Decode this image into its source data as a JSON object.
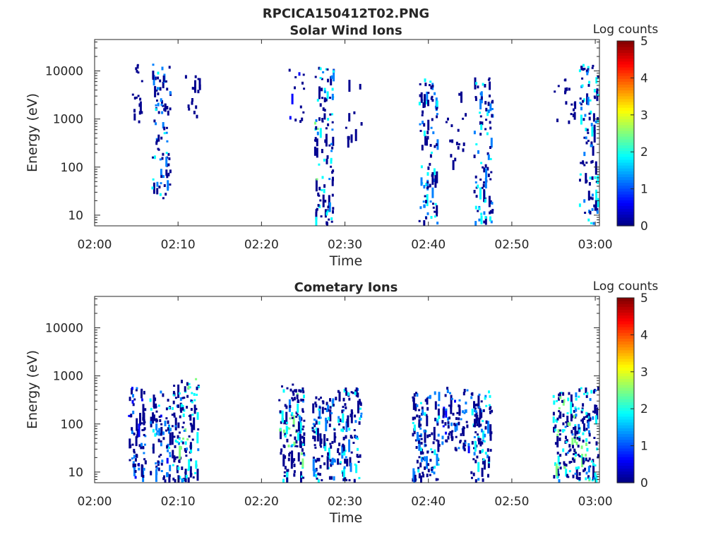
{
  "figure": {
    "filename": "RPCICA150412T02.PNG"
  },
  "colormap": [
    "#00008f",
    "#0000ff",
    "#0080ff",
    "#00ffff",
    "#80ff80",
    "#ffff00",
    "#ff8000",
    "#ff0000",
    "#800000"
  ],
  "colorbar": {
    "label": "Log counts",
    "range": [
      0,
      5
    ],
    "ticks": [
      "0",
      "1",
      "2",
      "3",
      "4",
      "5"
    ]
  },
  "chart_data": [
    {
      "type": "heatmap",
      "title": "Solar Wind Ions",
      "xlabel": "Time",
      "ylabel": "Energy (eV)",
      "x_ticks": [
        "02:00",
        "02:10",
        "02:20",
        "02:30",
        "02:40",
        "02:50",
        "03:00"
      ],
      "xlim_minutes": [
        0,
        60.5
      ],
      "y_scale": "log",
      "ylim": [
        6,
        45000
      ],
      "y_ticks": [
        "10",
        "100",
        "1000",
        "10000"
      ],
      "y_tick_values": [
        10,
        100,
        1000,
        10000
      ],
      "clusters": [
        {
          "t_range": [
            4.3,
            5.8
          ],
          "e_range": [
            900,
            15000
          ],
          "n": 18,
          "level_max": 0.6
        },
        {
          "t_range": [
            6.8,
            9.0
          ],
          "e_range": [
            20,
            15000
          ],
          "n": 90,
          "level_max": 2.2
        },
        {
          "t_range": [
            10.8,
            12.5
          ],
          "e_range": [
            900,
            9000
          ],
          "n": 16,
          "level_max": 0.6
        },
        {
          "t_range": [
            23.2,
            25.0
          ],
          "e_range": [
            800,
            12000
          ],
          "n": 14,
          "level_max": 0.8
        },
        {
          "t_range": [
            26.3,
            28.6
          ],
          "e_range": [
            7,
            15000
          ],
          "n": 110,
          "level_max": 2.6
        },
        {
          "t_range": [
            30.0,
            31.9
          ],
          "e_range": [
            400,
            9000
          ],
          "n": 12,
          "level_max": 0.5
        },
        {
          "t_range": [
            38.8,
            41.0
          ],
          "e_range": [
            7,
            8000
          ],
          "n": 95,
          "level_max": 2.2
        },
        {
          "t_range": [
            42.0,
            44.5
          ],
          "e_range": [
            100,
            8000
          ],
          "n": 18,
          "level_max": 0.6
        },
        {
          "t_range": [
            45.4,
            47.6
          ],
          "e_range": [
            7,
            8000
          ],
          "n": 95,
          "level_max": 2.3
        },
        {
          "t_range": [
            55.0,
            57.5
          ],
          "e_range": [
            800,
            7000
          ],
          "n": 18,
          "level_max": 0.6
        },
        {
          "t_range": [
            58.0,
            60.3
          ],
          "e_range": [
            7,
            15000
          ],
          "n": 100,
          "level_max": 2.3
        }
      ]
    },
    {
      "type": "heatmap",
      "title": "Cometary Ions",
      "xlabel": "Time",
      "ylabel": "Energy (eV)",
      "x_ticks": [
        "02:00",
        "02:10",
        "02:20",
        "02:30",
        "02:40",
        "02:50",
        "03:00"
      ],
      "xlim_minutes": [
        0,
        60.5
      ],
      "y_scale": "log",
      "ylim": [
        6,
        45000
      ],
      "y_ticks": [
        "10",
        "100",
        "1000",
        "10000"
      ],
      "y_tick_values": [
        10,
        100,
        1000,
        10000
      ],
      "clusters": [
        {
          "t_range": [
            4.0,
            6.0
          ],
          "e_range": [
            7,
            700
          ],
          "n": 75,
          "level_max": 1.8
        },
        {
          "t_range": [
            6.5,
            9.0
          ],
          "e_range": [
            7,
            500
          ],
          "n": 85,
          "level_max": 2.0
        },
        {
          "t_range": [
            9.2,
            12.4
          ],
          "e_range": [
            7,
            900
          ],
          "n": 130,
          "level_max": 2.7
        },
        {
          "t_range": [
            22.0,
            25.0
          ],
          "e_range": [
            7,
            700
          ],
          "n": 130,
          "level_max": 2.8
        },
        {
          "t_range": [
            26.0,
            28.8
          ],
          "e_range": [
            7,
            400
          ],
          "n": 100,
          "level_max": 2.2
        },
        {
          "t_range": [
            29.0,
            31.9
          ],
          "e_range": [
            7,
            600
          ],
          "n": 100,
          "level_max": 2.4
        },
        {
          "t_range": [
            38.0,
            41.2
          ],
          "e_range": [
            7,
            500
          ],
          "n": 120,
          "level_max": 2.2
        },
        {
          "t_range": [
            41.5,
            44.8
          ],
          "e_range": [
            30,
            600
          ],
          "n": 80,
          "level_max": 1.8
        },
        {
          "t_range": [
            45.0,
            47.5
          ],
          "e_range": [
            7,
            500
          ],
          "n": 95,
          "level_max": 2.4
        },
        {
          "t_range": [
            54.8,
            57.5
          ],
          "e_range": [
            7,
            500
          ],
          "n": 110,
          "level_max": 2.9
        },
        {
          "t_range": [
            57.5,
            60.3
          ],
          "e_range": [
            7,
            600
          ],
          "n": 120,
          "level_max": 2.6
        }
      ]
    }
  ]
}
